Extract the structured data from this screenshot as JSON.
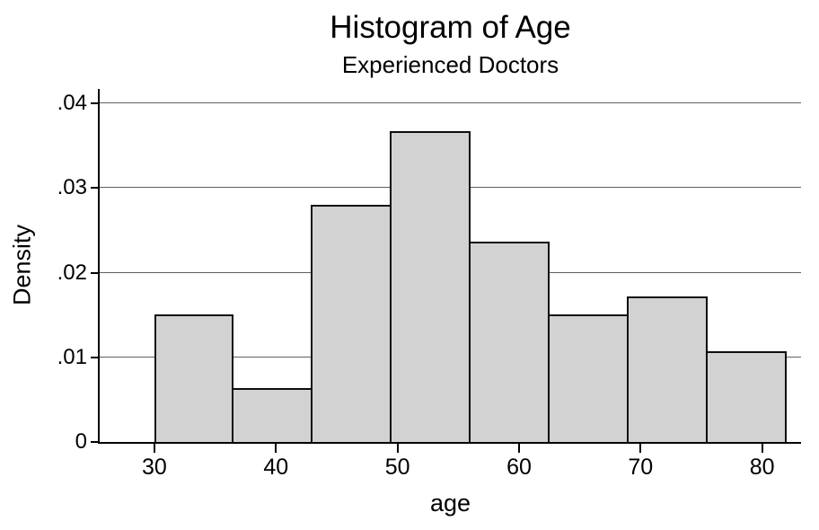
{
  "chart_data": {
    "type": "bar",
    "subtype": "histogram",
    "title": "Histogram of Age",
    "subtitle": "Experienced Doctors",
    "xlabel": "age",
    "ylabel": "Density",
    "bins": [
      {
        "start": 30,
        "end": 36.5,
        "density": 0.0151
      },
      {
        "start": 36.5,
        "end": 43,
        "density": 0.0064
      },
      {
        "start": 43,
        "end": 49.5,
        "density": 0.028
      },
      {
        "start": 49.5,
        "end": 56,
        "density": 0.0367
      },
      {
        "start": 56,
        "end": 62.5,
        "density": 0.0237
      },
      {
        "start": 62.5,
        "end": 69,
        "density": 0.0151
      },
      {
        "start": 69,
        "end": 75.5,
        "density": 0.0172
      },
      {
        "start": 75.5,
        "end": 82,
        "density": 0.0107
      }
    ],
    "x_ticks": [
      30,
      40,
      50,
      60,
      70,
      80
    ],
    "y_ticks": [
      {
        "value": 0,
        "label": "0"
      },
      {
        "value": 0.01,
        "label": ".01"
      },
      {
        "value": 0.02,
        "label": ".02"
      },
      {
        "value": 0.03,
        "label": ".03"
      },
      {
        "value": 0.04,
        "label": ".04"
      }
    ],
    "xlim": [
      25.5,
      83.2
    ],
    "ylim": [
      0,
      0.0417
    ],
    "grid": true,
    "legend": null,
    "colors": {
      "bar_fill": "#d2d2d2",
      "bar_border": "#0d0d0d",
      "grid_color": "#5f5f5f",
      "axis_color": "#000000",
      "text_color": "#000000",
      "background": "#ffffff"
    }
  }
}
